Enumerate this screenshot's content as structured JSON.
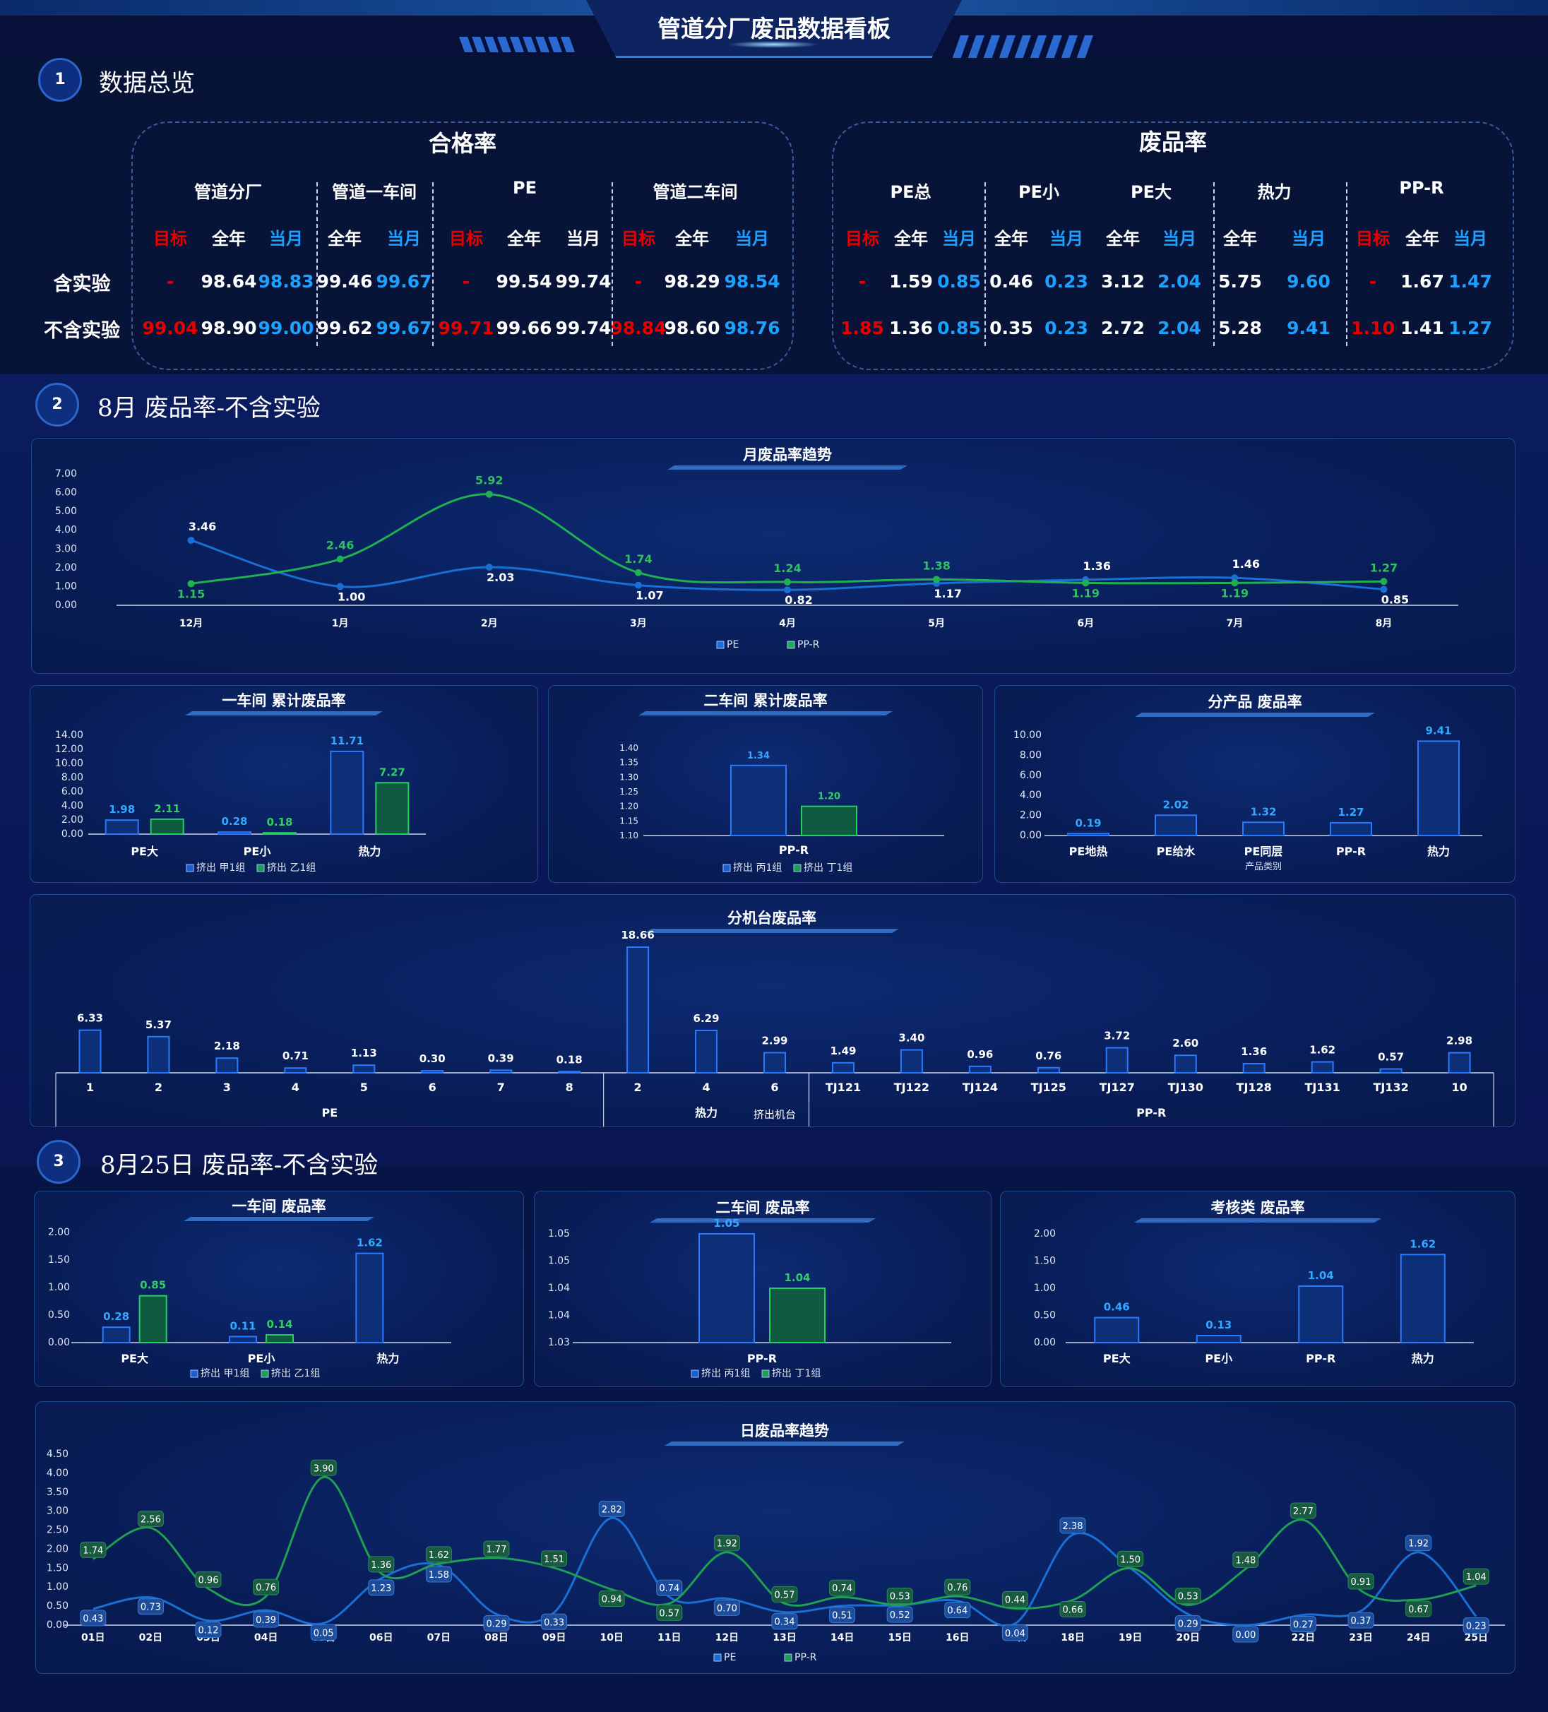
{
  "page": {
    "title": "管道分厂废品数据看板"
  },
  "sections": {
    "s1": {
      "num": "1",
      "title": "数据总览"
    },
    "s2": {
      "num": "2",
      "title": "8月 废品率-不含实验"
    },
    "s3": {
      "num": "3",
      "title": "8月25日 废品率-不含实验"
    }
  },
  "overview": {
    "colors": {
      "target": "#e80000",
      "year": "#ffffff",
      "month": "#1ea0ff"
    },
    "rowlabels": [
      "含实验",
      "不含实验"
    ],
    "pass": {
      "title": "合格率",
      "groups": [
        {
          "name": "管道分厂",
          "cols": [
            {
              "h": "目标",
              "k": "target"
            },
            {
              "h": "全年",
              "k": "year"
            },
            {
              "h": "当月",
              "k": "month"
            }
          ]
        },
        {
          "name": "管道一车间",
          "cols": [
            {
              "h": "全年",
              "k": "year"
            },
            {
              "h": "当月",
              "k": "month"
            }
          ]
        },
        {
          "name": "PE",
          "cols": [
            {
              "h": "目标",
              "k": "target"
            },
            {
              "h": "全年",
              "k": "year"
            },
            {
              "h": "当月",
              "k": "year"
            }
          ]
        },
        {
          "name": "管道二车间",
          "cols": [
            {
              "h": "目标",
              "k": "target"
            },
            {
              "h": "全年",
              "k": "year"
            },
            {
              "h": "当月",
              "k": "month"
            }
          ]
        }
      ],
      "rows": [
        [
          "-",
          "98.64",
          "98.83",
          "99.46",
          "99.67",
          "-",
          "99.54",
          "99.74",
          "-",
          "98.29",
          "98.54"
        ],
        [
          "99.04",
          "98.90",
          "99.00",
          "99.62",
          "99.67",
          "99.71",
          "99.66",
          "99.74",
          "98.84",
          "98.60",
          "98.76"
        ]
      ]
    },
    "scrap": {
      "title": "废品率",
      "groups": [
        {
          "name": "PE总",
          "cols": [
            {
              "h": "目标",
              "k": "target"
            },
            {
              "h": "全年",
              "k": "year"
            },
            {
              "h": "当月",
              "k": "month"
            }
          ]
        },
        {
          "name": "PE小",
          "cols": [
            {
              "h": "全年",
              "k": "year"
            },
            {
              "h": "当月",
              "k": "month"
            }
          ]
        },
        {
          "name": "PE大",
          "cols": [
            {
              "h": "全年",
              "k": "year"
            },
            {
              "h": "当月",
              "k": "month"
            }
          ]
        },
        {
          "name": "热力",
          "cols": [
            {
              "h": "全年",
              "k": "year"
            },
            {
              "h": "当月",
              "k": "month"
            }
          ]
        },
        {
          "name": "PP-R",
          "cols": [
            {
              "h": "目标",
              "k": "target"
            },
            {
              "h": "全年",
              "k": "year"
            },
            {
              "h": "当月",
              "k": "month"
            }
          ]
        }
      ],
      "rows": [
        [
          "-",
          "1.59",
          "0.85",
          "0.46",
          "0.23",
          "3.12",
          "2.04",
          "5.75",
          "9.60",
          "-",
          "1.67",
          "1.47"
        ],
        [
          "1.85",
          "1.36",
          "0.85",
          "0.35",
          "0.23",
          "2.72",
          "2.04",
          "5.28",
          "9.41",
          "1.10",
          "1.41",
          "1.27"
        ]
      ]
    }
  },
  "chart_data": [
    {
      "id": "monthly",
      "type": "line",
      "title": "月废品率趋势",
      "categories": [
        "12月",
        "1月",
        "2月",
        "3月",
        "4月",
        "5月",
        "6月",
        "7月",
        "8月"
      ],
      "ylim": [
        0,
        7
      ],
      "yticks": [
        "0.00",
        "1.00",
        "2.00",
        "3.00",
        "4.00",
        "5.00",
        "6.00",
        "7.00"
      ],
      "series": [
        {
          "name": "PE",
          "color": "#1a6fd4",
          "values": [
            3.46,
            1.0,
            2.03,
            1.07,
            0.82,
            1.17,
            1.36,
            1.46,
            0.85
          ]
        },
        {
          "name": "PP-R",
          "color": "#20b050",
          "values": [
            1.15,
            2.46,
            5.92,
            1.74,
            1.24,
            1.38,
            1.19,
            1.19,
            1.27
          ]
        }
      ]
    },
    {
      "id": "ws1cum",
      "type": "bar",
      "title": "一车间 累计废品率",
      "categories": [
        "PE大",
        "PE小",
        "热力"
      ],
      "ylim": [
        0,
        14
      ],
      "yticks": [
        "0.00",
        "2.00",
        "4.00",
        "6.00",
        "8.00",
        "10.00",
        "12.00",
        "14.00"
      ],
      "series": [
        {
          "name": "挤出 甲1组",
          "color": "#1a5fd0",
          "values": [
            1.98,
            0.28,
            11.71
          ]
        },
        {
          "name": "挤出 乙1组",
          "color": "#1ea050",
          "values": [
            2.11,
            0.18,
            7.27
          ]
        }
      ]
    },
    {
      "id": "ws2cum",
      "type": "bar",
      "title": "二车间 累计废品率",
      "categories": [
        "PP-R"
      ],
      "ylim": [
        1.1,
        1.4
      ],
      "yticks": [
        "1.10",
        "1.15",
        "1.20",
        "1.25",
        "1.30",
        "1.35",
        "1.40"
      ],
      "series": [
        {
          "name": "挤出 丙1组",
          "color": "#1a5fd0",
          "values": [
            1.34
          ]
        },
        {
          "name": "挤出 丁1组",
          "color": "#1ea050",
          "values": [
            1.2
          ]
        }
      ]
    },
    {
      "id": "byprod",
      "type": "bar",
      "title": "分产品 废品率",
      "xlabel": "产品类别",
      "categories": [
        "PE地热",
        "PE给水",
        "PE同层",
        "PP-R",
        "热力"
      ],
      "ylim": [
        0,
        10
      ],
      "yticks": [
        "0.00",
        "2.00",
        "4.00",
        "6.00",
        "8.00",
        "10.00"
      ],
      "series": [
        {
          "name": "",
          "color": "#1a5fd0",
          "values": [
            0.19,
            2.02,
            1.32,
            1.27,
            9.41
          ]
        }
      ]
    },
    {
      "id": "bymachine",
      "type": "bar",
      "title": "分机台废品率",
      "xlabel": "挤出机台",
      "categories": [
        "1",
        "2",
        "3",
        "4",
        "5",
        "6",
        "7",
        "8",
        "2",
        "4",
        "6",
        "TJ121",
        "TJ122",
        "TJ124",
        "TJ125",
        "TJ127",
        "TJ130",
        "TJ128",
        "TJ131",
        "TJ132",
        "10"
      ],
      "values": [
        6.33,
        5.37,
        2.18,
        0.71,
        1.13,
        0.3,
        0.39,
        0.18,
        18.66,
        6.29,
        2.99,
        1.49,
        3.4,
        0.96,
        0.76,
        3.72,
        2.6,
        1.36,
        1.62,
        0.57,
        2.98
      ],
      "groups": [
        {
          "name": "PE",
          "count": 8
        },
        {
          "name": "热力",
          "count": 3
        },
        {
          "name": "PP-R",
          "count": 10
        }
      ]
    },
    {
      "id": "ws1day",
      "type": "bar",
      "title": "一车间 废品率",
      "categories": [
        "PE大",
        "PE小",
        "热力"
      ],
      "ylim": [
        0,
        2
      ],
      "yticks": [
        "0.00",
        "0.50",
        "1.00",
        "1.50",
        "2.00"
      ],
      "series": [
        {
          "name": "挤出 甲1组",
          "color": "#1a5fd0",
          "values": [
            0.28,
            0.11,
            1.62
          ]
        },
        {
          "name": "挤出 乙1组",
          "color": "#1ea050",
          "values": [
            0.85,
            0.14,
            null
          ]
        }
      ]
    },
    {
      "id": "ws2day",
      "type": "bar",
      "title": "二车间 废品率",
      "categories": [
        "PP-R"
      ],
      "ylim": [
        1.03,
        1.05
      ],
      "yticks": [
        "1.03",
        "1.04",
        "1.04",
        "1.05",
        "1.05"
      ],
      "series": [
        {
          "name": "挤出 丙1组",
          "color": "#1a5fd0",
          "values": [
            1.05
          ]
        },
        {
          "name": "挤出 丁1组",
          "color": "#1ea050",
          "values": [
            1.04
          ]
        }
      ]
    },
    {
      "id": "assess",
      "type": "bar",
      "title": "考核类 废品率",
      "categories": [
        "PE大",
        "PE小",
        "PP-R",
        "热力"
      ],
      "ylim": [
        0,
        2
      ],
      "yticks": [
        "0.00",
        "0.50",
        "1.00",
        "1.50",
        "2.00"
      ],
      "series": [
        {
          "name": "",
          "color": "#1a5fd0",
          "values": [
            0.46,
            0.13,
            1.04,
            1.62
          ]
        }
      ]
    },
    {
      "id": "daily",
      "type": "line",
      "title": "日废品率趋势",
      "categories": [
        "01日",
        "02日",
        "03日",
        "04日",
        "05日",
        "06日",
        "07日",
        "08日",
        "09日",
        "10日",
        "11日",
        "12日",
        "13日",
        "14日",
        "15日",
        "16日",
        "17日",
        "18日",
        "19日",
        "20日",
        "21日",
        "22日",
        "23日",
        "24日",
        "25日"
      ],
      "ylim": [
        0,
        4.5
      ],
      "yticks": [
        "0.00",
        "0.50",
        "1.00",
        "1.50",
        "2.00",
        "2.50",
        "3.00",
        "3.50",
        "4.00",
        "4.50"
      ],
      "series": [
        {
          "name": "PE",
          "color": "#1a6fd4",
          "values": [
            0.43,
            0.73,
            0.12,
            0.39,
            0.05,
            1.23,
            1.58,
            0.29,
            0.33,
            2.82,
            0.74,
            0.7,
            0.34,
            0.51,
            0.52,
            0.64,
            0.04,
            2.38,
            1.5,
            0.29,
            0.0,
            0.27,
            0.37,
            1.92,
            0.23
          ]
        },
        {
          "name": "PP-R",
          "color": "#1ea050",
          "values": [
            1.74,
            2.56,
            0.96,
            0.76,
            3.9,
            1.36,
            1.62,
            1.77,
            1.51,
            0.94,
            0.57,
            1.92,
            0.57,
            0.74,
            0.53,
            0.76,
            0.44,
            0.66,
            1.5,
            0.53,
            1.48,
            2.77,
            0.91,
            0.67,
            1.04
          ]
        }
      ]
    }
  ]
}
